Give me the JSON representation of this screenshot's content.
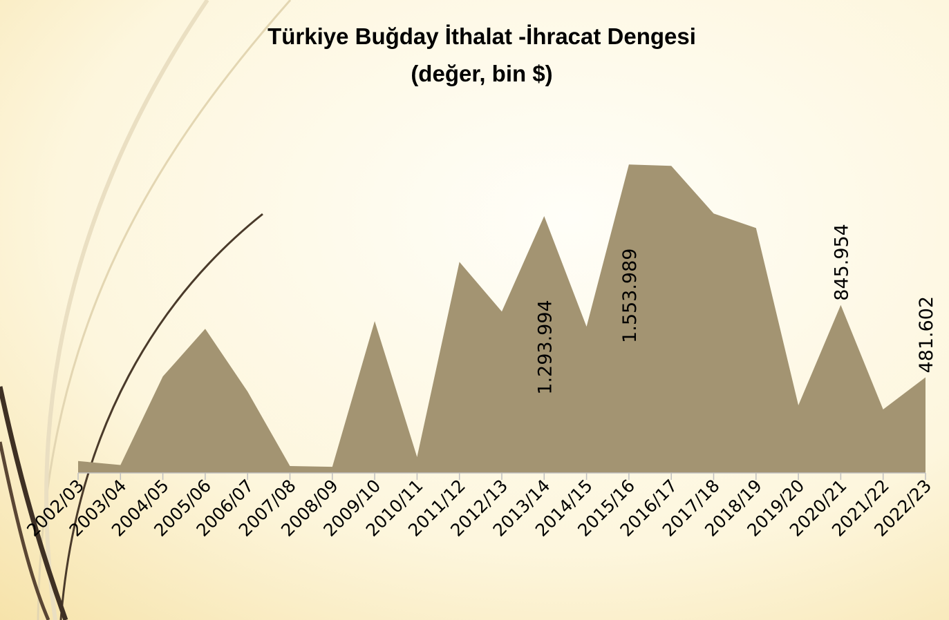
{
  "chart_data": {
    "type": "area",
    "title": "Türkiye Buğday İthalat -İhracat Dengesi",
    "subtitle": "(değer, bin $)",
    "categories": [
      "2002/03",
      "2003/04",
      "2004/05",
      "2005/06",
      "2006/07",
      "2007/08",
      "2008/09",
      "2009/10",
      "2010/11",
      "2011/12",
      "2012/13",
      "2013/14",
      "2014/15",
      "2015/16",
      "2016/17",
      "2017/18",
      "2018/19",
      "2019/20",
      "2020/21",
      "2021/22",
      "2022/23"
    ],
    "values": [
      60000,
      40000,
      486000,
      726000,
      410000,
      35000,
      31000,
      765000,
      80000,
      1063000,
      813000,
      1293994,
      737000,
      1553989,
      1547000,
      1307000,
      1234000,
      341000,
      845954,
      320000,
      481602
    ],
    "value_labels": [
      null,
      null,
      null,
      null,
      null,
      null,
      null,
      null,
      null,
      null,
      null,
      "1.293.994",
      null,
      "1.553.989",
      null,
      null,
      null,
      null,
      "845.954",
      null,
      "481.602"
    ],
    "color": "#a39472",
    "ylim": [
      0,
      2000000
    ]
  }
}
